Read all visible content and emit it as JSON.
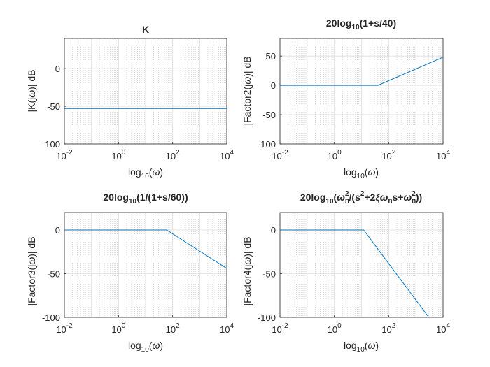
{
  "chart_data": [
    {
      "type": "line",
      "title": "K",
      "xlabel": "log10(ω)",
      "ylabel": "|K(jω)| dB",
      "xscale": "log",
      "xlim": [
        0.01,
        10000
      ],
      "ylim": [
        -100,
        40
      ],
      "xticks": [
        0.01,
        1,
        100,
        10000
      ],
      "xtick_labels": [
        "10-2",
        "100",
        "102",
        "104"
      ],
      "yticks": [
        -100,
        -50,
        0
      ],
      "ytick_labels": [
        "-100",
        "-50",
        "0"
      ],
      "grid": true,
      "series": [
        {
          "color": "#0072bd",
          "points": [
            [
              0.01,
              -53
            ],
            [
              10000,
              -53
            ]
          ]
        }
      ]
    },
    {
      "type": "line",
      "title": "20log10(1+s/40)",
      "xlabel": "log10(ω)",
      "ylabel": "|Factor2(jω)| dB",
      "xscale": "log",
      "xlim": [
        0.01,
        10000
      ],
      "ylim": [
        -100,
        80
      ],
      "xticks": [
        0.01,
        1,
        100,
        10000
      ],
      "xtick_labels": [
        "10-2",
        "100",
        "102",
        "104"
      ],
      "yticks": [
        -100,
        -50,
        0,
        50
      ],
      "ytick_labels": [
        "-100",
        "-50",
        "0",
        "50"
      ],
      "grid": true,
      "series": [
        {
          "color": "#0072bd",
          "points": [
            [
              0.01,
              0
            ],
            [
              40,
              0
            ],
            [
              10000,
              48
            ]
          ]
        }
      ]
    },
    {
      "type": "line",
      "title": "20log10(1/(1+s/60))",
      "xlabel": "log10(ω)",
      "ylabel": "|Factor3(jω)| dB",
      "xscale": "log",
      "xlim": [
        0.01,
        10000
      ],
      "ylim": [
        -100,
        20
      ],
      "xticks": [
        0.01,
        1,
        100,
        10000
      ],
      "xtick_labels": [
        "10-2",
        "100",
        "102",
        "104"
      ],
      "yticks": [
        -100,
        -50,
        0
      ],
      "ytick_labels": [
        "-100",
        "-50",
        "0"
      ],
      "grid": true,
      "series": [
        {
          "color": "#0072bd",
          "points": [
            [
              0.01,
              0
            ],
            [
              60,
              0
            ],
            [
              10000,
              -44
            ]
          ]
        }
      ]
    },
    {
      "type": "line",
      "title": "20log10(ωn2/(s2+2ξωns+ωn2))",
      "xlabel": "log10(ω)",
      "ylabel": "|Factor4(jω)| dB",
      "xscale": "log",
      "xlim": [
        0.01,
        10000
      ],
      "ylim": [
        -100,
        20
      ],
      "xticks": [
        0.01,
        1,
        100,
        10000
      ],
      "xtick_labels": [
        "10-2",
        "100",
        "102",
        "104"
      ],
      "yticks": [
        -100,
        -50,
        0
      ],
      "ytick_labels": [
        "-100",
        "-50",
        "0"
      ],
      "grid": true,
      "series": [
        {
          "color": "#0072bd",
          "points": [
            [
              0.01,
              0
            ],
            [
              12,
              0
            ],
            [
              3000,
              -100
            ]
          ]
        }
      ]
    }
  ]
}
